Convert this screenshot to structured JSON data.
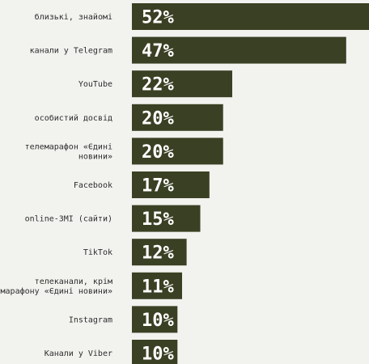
{
  "chart_data": {
    "type": "bar",
    "orientation": "horizontal",
    "categories": [
      [
        "близькі, знайомі"
      ],
      [
        "канали у Telegram"
      ],
      [
        "YouTube"
      ],
      [
        "особистий досвід"
      ],
      [
        "телемарафон «Єдині",
        "новини»"
      ],
      [
        "Facebook"
      ],
      [
        "online-ЗМІ (сайти)"
      ],
      [
        "TikTok"
      ],
      [
        "телеканали, крім",
        "марафону «Єдині новини»"
      ],
      [
        "Instagram"
      ],
      [
        "Канали у Viber"
      ]
    ],
    "values": [
      52,
      47,
      22,
      20,
      20,
      17,
      15,
      12,
      11,
      10,
      10
    ],
    "value_labels": [
      "52%",
      "47%",
      "22%",
      "20%",
      "20%",
      "17%",
      "15%",
      "12%",
      "11%",
      "10%",
      "10%"
    ],
    "xlim": [
      0,
      52
    ],
    "bar_color": "#3a4023",
    "value_label_color": "#ffffff",
    "category_label_color": "#2d2d2d",
    "background_color": "#f2f2ef",
    "grid": false,
    "legend": "none"
  }
}
